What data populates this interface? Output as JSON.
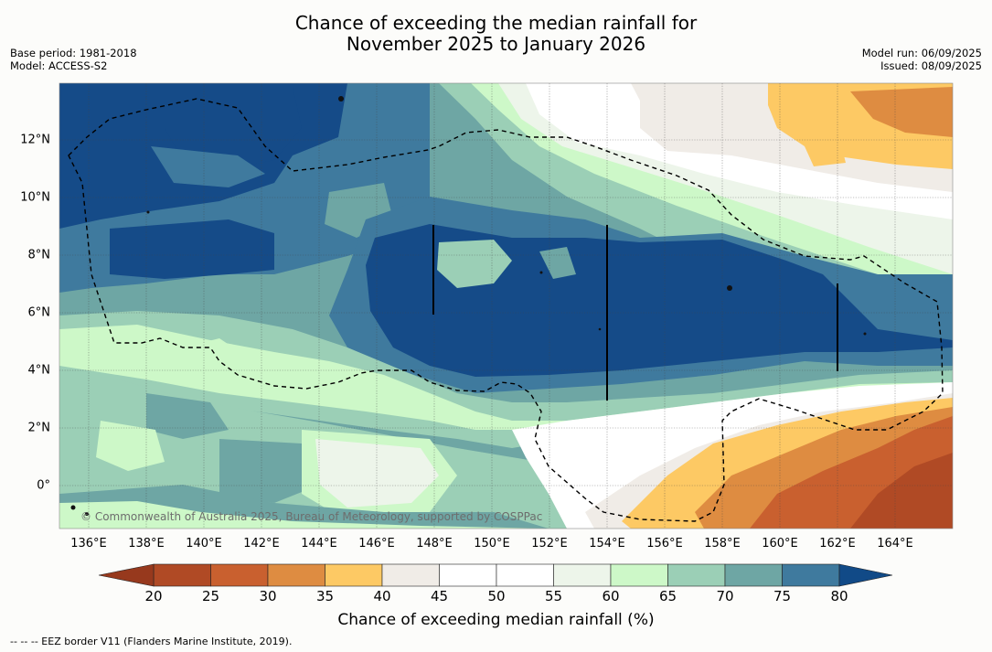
{
  "title": {
    "line1": "Chance of exceeding the median rainfall for",
    "line2": "November 2025 to January 2026"
  },
  "meta": {
    "base_period": "Base period: 1981-2018",
    "model": "Model: ACCESS-S2",
    "model_run": "Model run: 06/09/2025",
    "issued": "Issued: 08/09/2025"
  },
  "map": {
    "lon_labels": [
      "136°E",
      "138°E",
      "140°E",
      "142°E",
      "144°E",
      "146°E",
      "148°E",
      "150°E",
      "152°E",
      "154°E",
      "156°E",
      "158°E",
      "160°E",
      "162°E",
      "164°E"
    ],
    "lat_labels": [
      "12°N",
      "10°N",
      "8°N",
      "6°N",
      "4°N",
      "2°N",
      "0°"
    ],
    "copyright": "© Commonwealth of Australia 2025, Bureau of Meteorology, supported by COSPPac",
    "eez_style": "dashed"
  },
  "colorbar": {
    "title": "Chance of exceeding median rainfall (%)",
    "ticks": [
      "20",
      "25",
      "30",
      "35",
      "40",
      "45",
      "50",
      "55",
      "60",
      "65",
      "70",
      "75",
      "80"
    ],
    "colors": [
      "#b04a25",
      "#c9602f",
      "#de8c41",
      "#fdc964",
      "#f0ece7",
      "#ffffff",
      "#ffffff",
      "#edf5ea",
      "#cdf8c8",
      "#9bcfb6",
      "#6ea6a4",
      "#3f7a9e",
      "#154b88"
    ],
    "extend": "both",
    "low_color": "#97391d",
    "high_color": "#114a87"
  },
  "footnote": "--  --  -- EEZ border V11 (Flanders Marine Institute, 2019)."
}
